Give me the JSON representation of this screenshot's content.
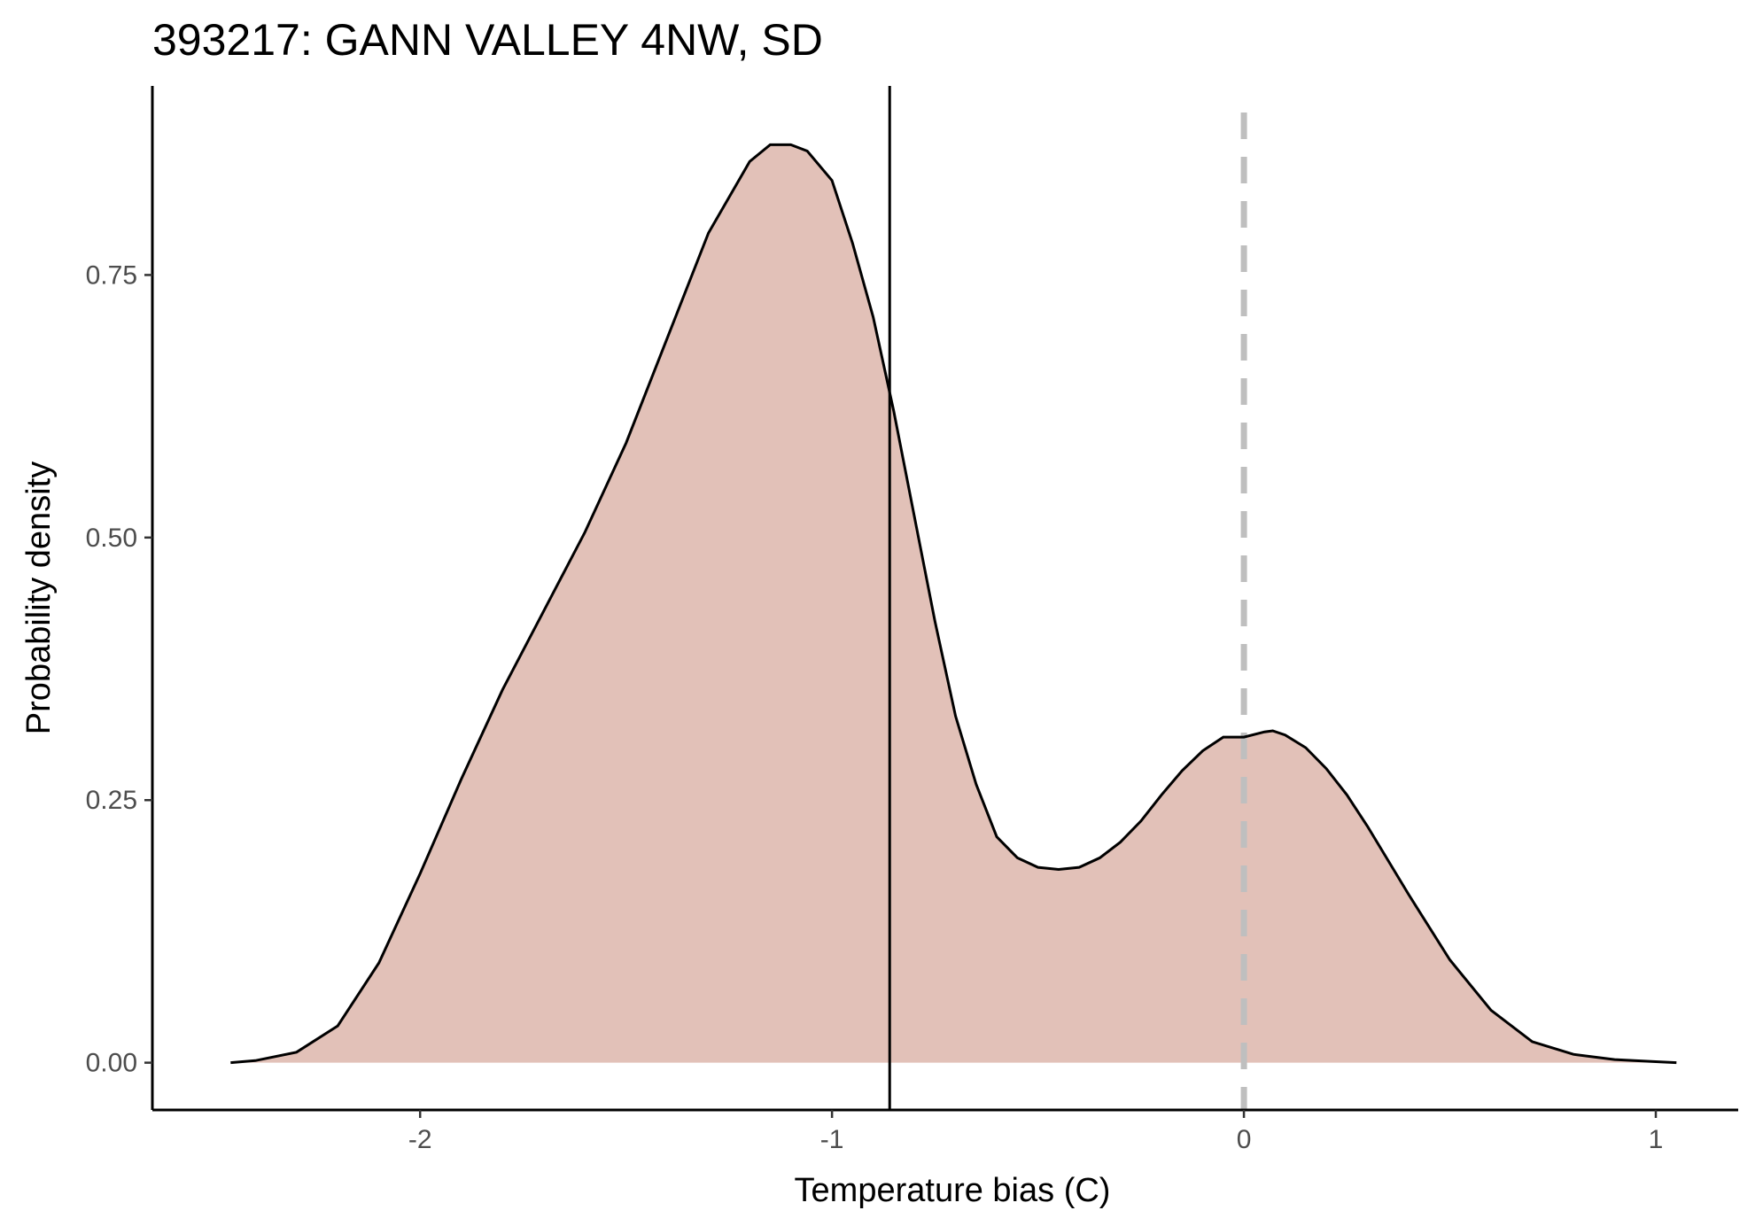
{
  "chart_data": {
    "type": "area",
    "title": "393217: GANN VALLEY 4NW, SD",
    "xlabel": "Temperature bias (C)",
    "ylabel": "Probability density",
    "xlim": [
      -2.65,
      1.2
    ],
    "ylim": [
      -0.045,
      0.93
    ],
    "x_ticks": [
      -2,
      -1,
      0,
      1
    ],
    "x_tick_labels": [
      "-2",
      "-1",
      "0",
      "1"
    ],
    "y_ticks": [
      0,
      0.25,
      0.5,
      0.75
    ],
    "y_tick_labels": [
      "0.00",
      "0.25",
      "0.50",
      "0.75"
    ],
    "fill_color": "#e2c1b8",
    "line_color": "#000000",
    "reference_lines": [
      {
        "x": -0.86,
        "style": "solid",
        "color": "#000000"
      },
      {
        "x": 0.0,
        "style": "dashed",
        "color": "#bfbfbf"
      }
    ],
    "grid": false,
    "legend": "none",
    "series": [
      {
        "x": [
          -2.46,
          -2.4,
          -2.3,
          -2.2,
          -2.1,
          -2.0,
          -1.9,
          -1.8,
          -1.7,
          -1.6,
          -1.5,
          -1.4,
          -1.3,
          -1.2,
          -1.15,
          -1.1,
          -1.06,
          -1.0,
          -0.95,
          -0.9,
          -0.85,
          -0.8,
          -0.75,
          -0.7,
          -0.65,
          -0.6,
          -0.55,
          -0.5,
          -0.45,
          -0.4,
          -0.35,
          -0.3,
          -0.25,
          -0.2,
          -0.15,
          -0.1,
          -0.05,
          0.0,
          0.05,
          0.07,
          0.1,
          0.15,
          0.2,
          0.25,
          0.3,
          0.4,
          0.5,
          0.6,
          0.7,
          0.8,
          0.9,
          1.0,
          1.05
        ],
        "y": [
          0.0,
          0.002,
          0.01,
          0.035,
          0.095,
          0.18,
          0.27,
          0.355,
          0.43,
          0.505,
          0.59,
          0.69,
          0.79,
          0.858,
          0.874,
          0.874,
          0.868,
          0.84,
          0.78,
          0.71,
          0.62,
          0.52,
          0.42,
          0.33,
          0.265,
          0.215,
          0.195,
          0.186,
          0.184,
          0.186,
          0.195,
          0.21,
          0.23,
          0.255,
          0.278,
          0.297,
          0.31,
          0.31,
          0.315,
          0.316,
          0.312,
          0.3,
          0.28,
          0.255,
          0.225,
          0.16,
          0.098,
          0.05,
          0.02,
          0.008,
          0.003,
          0.001,
          0.0
        ]
      }
    ]
  }
}
